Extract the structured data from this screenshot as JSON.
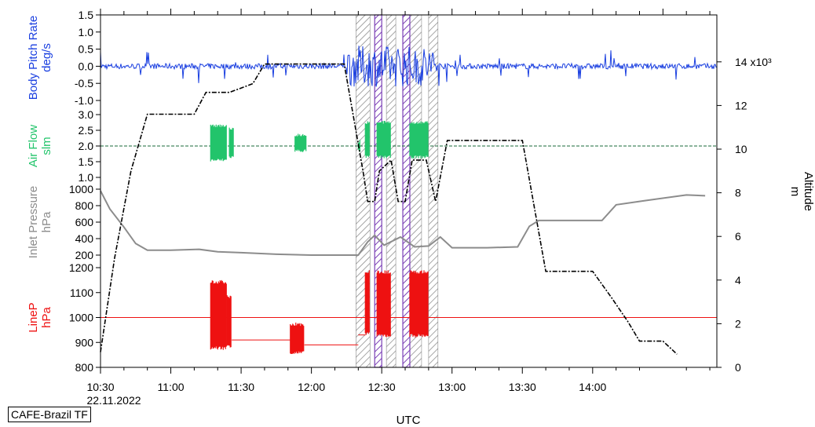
{
  "colors": {
    "pitch": "#1a3fe0",
    "airflow": "#22c46b",
    "airflow_ref": "#1a6a3a",
    "inlet": "#8c8c8c",
    "linep": "#ee1111",
    "altitude": "#000000",
    "hatch": "#8a8a8a",
    "purple": "#7a3fb5"
  },
  "flight_label": "CAFE-Brazil TF",
  "chart_data": {
    "type": "line",
    "xlabel": "UTC",
    "date_label": "22.11.2022",
    "x_ticks": [
      "10:30",
      "11:00",
      "11:30",
      "12:00",
      "12:30",
      "13:00",
      "13:30",
      "14:00"
    ],
    "xlim": [
      "10:30",
      "14:53"
    ],
    "panels": [
      {
        "id": "pitch",
        "ylabel": [
          "Body Pitch Rate",
          "deg/s"
        ],
        "ylim": [
          -1.0,
          1.5
        ],
        "ticks": [
          "1.5",
          "1.0",
          "0.5",
          "0.0",
          "-0.5",
          "-1.0"
        ],
        "baseline": 0.0
      },
      {
        "id": "airflow",
        "ylabel": [
          "Air Flow",
          "slm"
        ],
        "ylim": [
          1.0,
          3.0
        ],
        "ticks": [
          "3.0",
          "2.5",
          "2.0",
          "1.5",
          "1.0"
        ],
        "baseline": 2.0,
        "bursts": [
          [
            "11:17",
            "11:24",
            1.5,
            2.7
          ],
          [
            "11:25",
            "11:27",
            1.6,
            2.6
          ],
          [
            "11:53",
            "11:58",
            1.8,
            2.4
          ],
          [
            "12:20",
            "12:21",
            1.8,
            2.2
          ],
          [
            "12:23",
            "12:25",
            1.6,
            2.8
          ],
          [
            "12:28",
            "12:34",
            1.6,
            2.8
          ],
          [
            "12:42",
            "12:50",
            1.6,
            2.8
          ]
        ]
      },
      {
        "id": "inlet",
        "ylabel": [
          "Inlet Pressure",
          "hPa"
        ],
        "ylim": [
          200,
          1000
        ],
        "ticks": [
          "1000",
          "800",
          "600",
          "400",
          "200"
        ],
        "series": [
          [
            "10:30",
            980
          ],
          [
            "10:34",
            760
          ],
          [
            "10:40",
            540
          ],
          [
            "10:45",
            340
          ],
          [
            "10:50",
            260
          ],
          [
            "11:00",
            260
          ],
          [
            "11:12",
            270
          ],
          [
            "11:20",
            240
          ],
          [
            "11:30",
            230
          ],
          [
            "11:45",
            210
          ],
          [
            "12:00",
            200
          ],
          [
            "12:20",
            200
          ],
          [
            "12:24",
            360
          ],
          [
            "12:27",
            440
          ],
          [
            "12:31",
            320
          ],
          [
            "12:38",
            420
          ],
          [
            "12:44",
            300
          ],
          [
            "12:50",
            310
          ],
          [
            "12:55",
            420
          ],
          [
            "13:00",
            290
          ],
          [
            "13:15",
            290
          ],
          [
            "13:28",
            300
          ],
          [
            "13:33",
            550
          ],
          [
            "13:37",
            620
          ],
          [
            "13:45",
            620
          ],
          [
            "14:00",
            620
          ],
          [
            "14:04",
            620
          ],
          [
            "14:10",
            810
          ],
          [
            "14:22",
            860
          ],
          [
            "14:40",
            930
          ],
          [
            "14:48",
            920
          ]
        ]
      },
      {
        "id": "linep",
        "ylabel": [
          "LineP",
          "hPa"
        ],
        "ylim": [
          800,
          1200
        ],
        "ticks": [
          "1200",
          "1100",
          "1000",
          "900",
          "800"
        ],
        "baseline": 1000,
        "bursts": [
          [
            "11:17",
            "11:24",
            870,
            1150
          ],
          [
            "11:24",
            "11:26",
            880,
            1090
          ],
          [
            "11:51",
            "11:57",
            850,
            980
          ],
          [
            "12:23",
            "12:25",
            930,
            1190
          ],
          [
            "12:28",
            "12:34",
            920,
            1190
          ],
          [
            "12:42",
            "12:50",
            920,
            1190
          ]
        ],
        "offsets": [
          [
            "11:26",
            "11:51",
            910
          ],
          [
            "11:57",
            "12:20",
            890
          ],
          [
            "12:20",
            "12:23",
            930
          ]
        ]
      }
    ],
    "altitude": {
      "ylabel": [
        "Altitude",
        "m"
      ],
      "ylim": [
        0,
        15
      ],
      "ticks": [
        "14 x10³",
        "12",
        "10",
        "8",
        "6",
        "4",
        "2",
        "0"
      ],
      "series": [
        [
          "10:30",
          0.7
        ],
        [
          "10:36",
          5.0
        ],
        [
          "10:43",
          9.0
        ],
        [
          "10:50",
          11.6
        ],
        [
          "11:10",
          11.6
        ],
        [
          "11:15",
          12.6
        ],
        [
          "11:25",
          12.6
        ],
        [
          "11:35",
          13.0
        ],
        [
          "11:40",
          13.9
        ],
        [
          "12:00",
          13.9
        ],
        [
          "12:14",
          13.9
        ],
        [
          "12:22",
          9.0
        ],
        [
          "12:24",
          7.6
        ],
        [
          "12:27",
          7.6
        ],
        [
          "12:29",
          9.0
        ],
        [
          "12:34",
          9.5
        ],
        [
          "12:37",
          7.6
        ],
        [
          "12:40",
          7.6
        ],
        [
          "12:43",
          9.5
        ],
        [
          "12:49",
          9.5
        ],
        [
          "12:53",
          7.6
        ],
        [
          "12:58",
          10.4
        ],
        [
          "13:30",
          10.4
        ],
        [
          "13:40",
          4.4
        ],
        [
          "13:50",
          4.4
        ],
        [
          "14:00",
          4.4
        ],
        [
          "14:08",
          3.2
        ],
        [
          "14:15",
          2.1
        ],
        [
          "14:20",
          1.2
        ],
        [
          "14:30",
          1.2
        ],
        [
          "14:36",
          0.6
        ]
      ]
    },
    "hatched_periods": [
      [
        "12:19",
        "12:25"
      ],
      [
        "12:32",
        "12:36"
      ],
      [
        "12:42",
        "12:47"
      ],
      [
        "12:50",
        "12:54"
      ]
    ],
    "purple_periods": [
      [
        "12:27",
        "12:30"
      ],
      [
        "12:39",
        "12:42"
      ]
    ]
  }
}
